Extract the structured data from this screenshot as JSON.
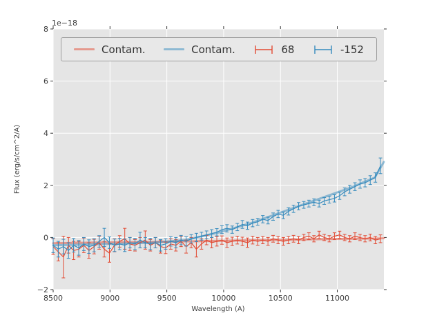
{
  "figure": {
    "background": "#ffffff"
  },
  "chart_data": {
    "type": "line",
    "title": "",
    "xlabel": "Wavelength (A)",
    "ylabel": "Flux (erg/s/cm^2/A)",
    "offset_text": "1e−18",
    "xlim": [
      8500,
      11410
    ],
    "ylim": [
      -2,
      8
    ],
    "xticks": [
      8500,
      9000,
      9500,
      10000,
      10500,
      11000
    ],
    "yticks": [
      -2,
      0,
      2,
      4,
      6,
      8
    ],
    "grid": true,
    "plot_bg": "#e5e5e5",
    "grid_color": "#ffffff",
    "tick_color": "#333333",
    "label_color": "#3a3a3a",
    "legend_position": "upper center inside, full width",
    "x": [
      8500,
      8545,
      8590,
      8635,
      8680,
      8725,
      8770,
      8815,
      8860,
      8905,
      8950,
      8995,
      9040,
      9085,
      9130,
      9175,
      9220,
      9265,
      9310,
      9355,
      9400,
      9445,
      9490,
      9535,
      9580,
      9625,
      9670,
      9715,
      9760,
      9805,
      9850,
      9895,
      9940,
      9985,
      10030,
      10075,
      10120,
      10165,
      10210,
      10255,
      10300,
      10345,
      10390,
      10435,
      10480,
      10525,
      10570,
      10615,
      10660,
      10705,
      10750,
      10795,
      10840,
      10885,
      10930,
      10975,
      11020,
      11065,
      11110,
      11155,
      11200,
      11245,
      11290,
      11335,
      11380
    ],
    "series": [
      {
        "name": "Contam.",
        "type": "line",
        "color": "#E24A33",
        "opacity": 0.5,
        "width": 3,
        "x": [
          8500,
          8790,
          9080,
          9370,
          9660,
          9950,
          10240,
          10530,
          10820,
          11110,
          11330,
          11410
        ],
        "y": [
          -0.22,
          -0.2,
          -0.18,
          -0.17,
          -0.15,
          -0.13,
          -0.11,
          -0.09,
          -0.07,
          -0.05,
          -0.04,
          -0.03
        ]
      },
      {
        "name": "Contam.",
        "type": "line",
        "color": "#348ABD",
        "opacity": 0.5,
        "width": 3,
        "x": [
          8500,
          8790,
          9080,
          9370,
          9660,
          9950,
          10240,
          10530,
          10820,
          11110,
          11330,
          11410
        ],
        "y": [
          -0.3,
          -0.27,
          -0.24,
          -0.2,
          -0.1,
          0.18,
          0.55,
          1.0,
          1.45,
          1.9,
          2.3,
          2.9
        ]
      },
      {
        "name": "68",
        "type": "errorbar",
        "color": "#E24A33",
        "y": [
          -0.35,
          -0.55,
          -0.75,
          -0.3,
          -0.5,
          -0.45,
          -0.3,
          -0.5,
          -0.35,
          -0.2,
          -0.45,
          -0.6,
          -0.3,
          -0.15,
          -0.05,
          -0.25,
          -0.3,
          -0.2,
          -0.1,
          -0.3,
          -0.2,
          -0.35,
          -0.4,
          -0.25,
          -0.3,
          -0.15,
          -0.35,
          -0.2,
          -0.45,
          -0.25,
          -0.1,
          -0.2,
          -0.15,
          -0.1,
          -0.2,
          -0.15,
          -0.1,
          -0.15,
          -0.2,
          -0.1,
          -0.15,
          -0.1,
          -0.15,
          -0.05,
          -0.1,
          -0.15,
          -0.1,
          -0.05,
          -0.1,
          0.0,
          0.05,
          -0.05,
          0.1,
          0.0,
          -0.05,
          0.05,
          0.1,
          0.0,
          -0.05,
          0.05,
          0.0,
          -0.05,
          0.0,
          -0.1,
          -0.05
        ],
        "yerr": [
          0.3,
          0.35,
          0.8,
          0.3,
          0.35,
          0.3,
          0.28,
          0.3,
          0.28,
          0.25,
          0.3,
          0.35,
          0.25,
          0.22,
          0.4,
          0.25,
          0.22,
          0.2,
          0.35,
          0.22,
          0.2,
          0.25,
          0.22,
          0.2,
          0.22,
          0.2,
          0.25,
          0.2,
          0.3,
          0.2,
          0.18,
          0.2,
          0.18,
          0.16,
          0.18,
          0.16,
          0.15,
          0.16,
          0.18,
          0.15,
          0.15,
          0.14,
          0.15,
          0.13,
          0.14,
          0.15,
          0.14,
          0.13,
          0.14,
          0.12,
          0.13,
          0.12,
          0.14,
          0.12,
          0.12,
          0.13,
          0.14,
          0.12,
          0.12,
          0.13,
          0.12,
          0.12,
          0.13,
          0.14,
          0.15
        ]
      },
      {
        "name": "-152",
        "type": "errorbar",
        "color": "#348ABD",
        "y": [
          -0.3,
          -0.45,
          -0.35,
          -0.5,
          -0.3,
          -0.4,
          -0.25,
          -0.35,
          -0.3,
          -0.15,
          0.0,
          -0.2,
          -0.3,
          -0.25,
          -0.3,
          -0.2,
          -0.25,
          -0.1,
          -0.2,
          -0.25,
          -0.2,
          -0.3,
          -0.25,
          -0.15,
          -0.2,
          -0.1,
          -0.15,
          -0.05,
          0.0,
          0.05,
          0.1,
          0.15,
          0.2,
          0.3,
          0.35,
          0.3,
          0.4,
          0.5,
          0.45,
          0.55,
          0.6,
          0.7,
          0.65,
          0.8,
          0.9,
          0.85,
          1.0,
          1.1,
          1.2,
          1.25,
          1.3,
          1.35,
          1.3,
          1.4,
          1.45,
          1.5,
          1.6,
          1.75,
          1.85,
          1.95,
          2.05,
          2.1,
          2.2,
          2.3,
          2.75
        ],
        "yerr": [
          0.28,
          0.3,
          0.28,
          0.3,
          0.26,
          0.28,
          0.25,
          0.26,
          0.25,
          0.22,
          0.35,
          0.22,
          0.24,
          0.22,
          0.24,
          0.2,
          0.22,
          0.3,
          0.2,
          0.22,
          0.2,
          0.22,
          0.2,
          0.18,
          0.2,
          0.18,
          0.18,
          0.16,
          0.16,
          0.15,
          0.15,
          0.15,
          0.14,
          0.15,
          0.14,
          0.14,
          0.14,
          0.15,
          0.14,
          0.14,
          0.13,
          0.14,
          0.13,
          0.14,
          0.14,
          0.13,
          0.14,
          0.14,
          0.14,
          0.13,
          0.13,
          0.13,
          0.13,
          0.13,
          0.13,
          0.14,
          0.14,
          0.15,
          0.15,
          0.15,
          0.16,
          0.16,
          0.17,
          0.18,
          0.3
        ]
      }
    ],
    "legend_labels": [
      "Contam.",
      "Contam.",
      "68",
      "-152"
    ]
  }
}
